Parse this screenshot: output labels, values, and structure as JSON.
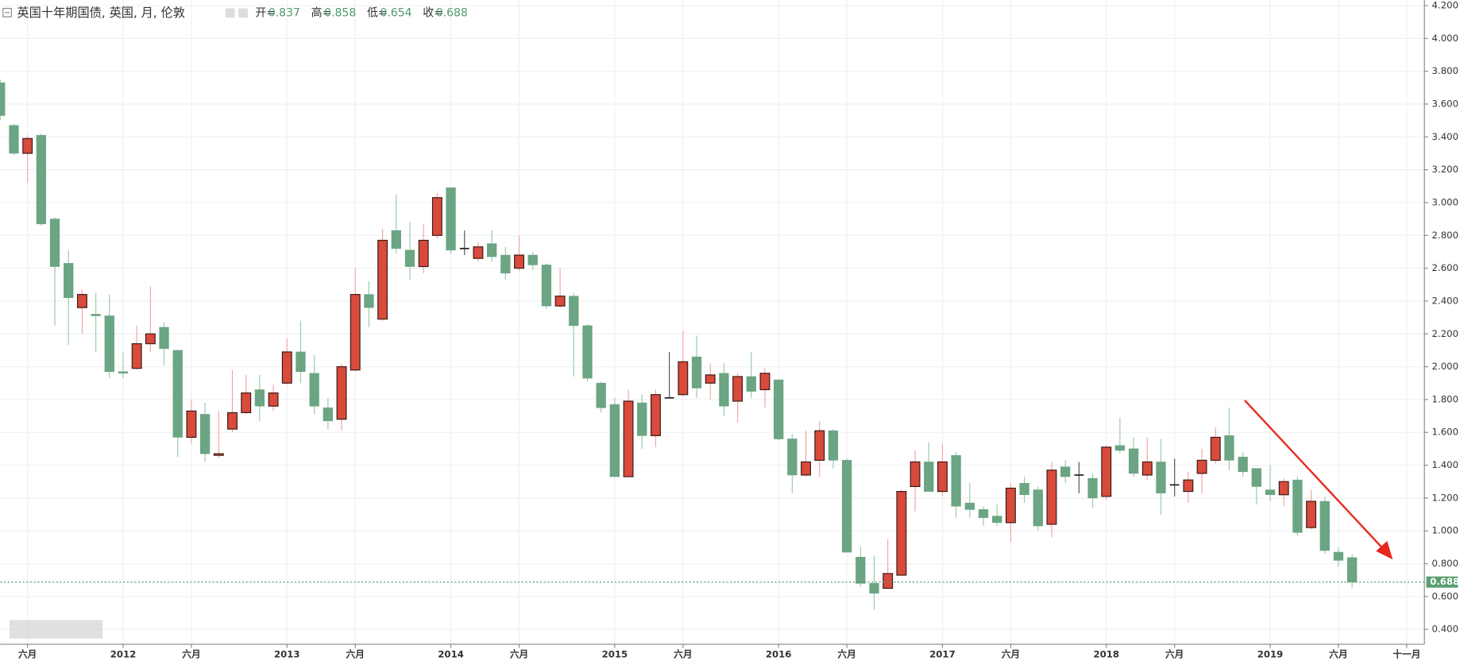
{
  "chart_data": {
    "type": "candlestick",
    "title": "英国十年期国债, 英国, 月, 伦敦",
    "ohlc_header": {
      "labels": [
        "开=",
        "高=",
        "低=",
        "收="
      ],
      "values": [
        0.837,
        0.858,
        0.654,
        0.688
      ]
    },
    "categories": [
      null,
      null,
      "六月",
      null,
      null,
      null,
      null,
      null,
      null,
      "2012",
      null,
      null,
      null,
      null,
      "六月",
      null,
      null,
      null,
      null,
      null,
      null,
      "2013",
      null,
      null,
      null,
      null,
      "六月",
      null,
      null,
      null,
      null,
      null,
      null,
      "2014",
      null,
      null,
      null,
      null,
      "六月",
      null,
      null,
      null,
      null,
      null,
      null,
      "2015",
      null,
      null,
      null,
      null,
      "六月",
      null,
      null,
      null,
      null,
      null,
      null,
      "2016",
      null,
      null,
      null,
      null,
      "六月",
      null,
      null,
      null,
      null,
      null,
      null,
      "2017",
      null,
      null,
      null,
      null,
      "六月",
      null,
      null,
      null,
      null,
      null,
      null,
      "2018",
      null,
      null,
      null,
      null,
      "六月",
      null,
      null,
      null,
      null,
      null,
      null,
      "2019",
      null,
      null,
      null,
      null,
      "六月",
      null,
      null,
      null,
      null,
      "十一月"
    ],
    "open": [
      3.73,
      3.47,
      3.3,
      3.41,
      2.9,
      2.63,
      2.36,
      2.32,
      2.31,
      1.97,
      1.99,
      2.14,
      2.24,
      2.1,
      1.57,
      1.71,
      1.46,
      1.62,
      1.72,
      1.86,
      1.76,
      1.9,
      2.09,
      1.96,
      1.75,
      1.68,
      1.98,
      2.44,
      2.29,
      2.83,
      2.71,
      2.61,
      2.8,
      3.09,
      2.72,
      2.66,
      2.75,
      2.68,
      2.6,
      2.68,
      2.62,
      2.37,
      2.43,
      2.25,
      1.9,
      1.77,
      1.33,
      1.78,
      1.58,
      1.81,
      1.83,
      2.06,
      1.9,
      1.96,
      1.79,
      1.94,
      1.86,
      1.92,
      1.56,
      1.34,
      1.43,
      1.61,
      1.43,
      0.84,
      0.68,
      0.65,
      0.73,
      1.27,
      1.42,
      1.24,
      1.46,
      1.17,
      1.13,
      1.09,
      1.05,
      1.29,
      1.25,
      1.04,
      1.39,
      1.34,
      1.32,
      1.21,
      1.52,
      1.5,
      1.34,
      1.42,
      1.28,
      1.24,
      1.35,
      1.43,
      1.58,
      1.45,
      1.38,
      1.25,
      1.22,
      1.31,
      1.02,
      1.18,
      0.87,
      0.837,
      null,
      null,
      null,
      null
    ],
    "high": [
      3.75,
      3.48,
      3.41,
      3.42,
      2.91,
      2.71,
      2.47,
      2.45,
      2.44,
      2.09,
      2.25,
      2.49,
      2.27,
      2.1,
      1.8,
      1.78,
      1.73,
      1.98,
      1.95,
      1.95,
      1.89,
      2.17,
      2.28,
      2.07,
      1.81,
      2.02,
      2.6,
      2.52,
      2.84,
      3.05,
      2.88,
      2.87,
      3.06,
      3.09,
      2.83,
      2.76,
      2.83,
      2.73,
      2.8,
      2.7,
      2.63,
      2.6,
      2.45,
      2.26,
      1.91,
      1.81,
      1.86,
      1.83,
      1.86,
      2.09,
      2.22,
      2.19,
      2.02,
      2.02,
      1.96,
      2.09,
      1.99,
      1.92,
      1.59,
      1.61,
      1.67,
      1.62,
      1.44,
      0.9,
      0.85,
      0.95,
      1.25,
      1.49,
      1.54,
      1.53,
      1.48,
      1.29,
      1.15,
      1.16,
      1.29,
      1.33,
      1.27,
      1.42,
      1.43,
      1.42,
      1.35,
      1.52,
      1.69,
      1.57,
      1.57,
      1.56,
      1.44,
      1.36,
      1.5,
      1.63,
      1.75,
      1.48,
      1.38,
      1.4,
      1.32,
      1.33,
      1.25,
      1.21,
      0.9,
      0.858,
      null,
      null,
      null,
      null
    ],
    "low": [
      3.5,
      3.29,
      3.12,
      2.86,
      2.25,
      2.13,
      2.2,
      2.09,
      1.93,
      1.93,
      1.98,
      2.09,
      2.01,
      1.45,
      1.53,
      1.42,
      1.44,
      1.6,
      1.71,
      1.67,
      1.73,
      1.89,
      1.9,
      1.71,
      1.62,
      1.61,
      1.97,
      2.24,
      2.28,
      2.69,
      2.53,
      2.57,
      2.78,
      2.69,
      2.68,
      2.64,
      2.64,
      2.53,
      2.58,
      2.59,
      2.35,
      2.36,
      1.94,
      1.91,
      1.72,
      1.33,
      1.33,
      1.5,
      1.51,
      1.81,
      1.82,
      1.81,
      1.8,
      1.7,
      1.66,
      1.81,
      1.75,
      1.55,
      1.23,
      1.33,
      1.33,
      1.38,
      0.87,
      0.66,
      0.52,
      0.65,
      0.73,
      1.12,
      1.24,
      1.21,
      1.08,
      1.08,
      1.03,
      1.03,
      0.93,
      1.17,
      1.0,
      0.96,
      1.29,
      1.23,
      1.14,
      1.19,
      1.47,
      1.33,
      1.31,
      1.1,
      1.21,
      1.17,
      1.23,
      1.41,
      1.37,
      1.33,
      1.16,
      1.18,
      1.15,
      0.97,
      1.01,
      0.86,
      0.78,
      0.654,
      null,
      null,
      null,
      null
    ],
    "close": [
      3.53,
      3.3,
      3.39,
      2.87,
      2.61,
      2.42,
      2.44,
      2.31,
      1.97,
      1.96,
      2.14,
      2.2,
      2.11,
      1.57,
      1.73,
      1.47,
      1.47,
      1.72,
      1.84,
      1.76,
      1.84,
      2.09,
      1.97,
      1.76,
      1.67,
      2.0,
      2.44,
      2.36,
      2.77,
      2.72,
      2.61,
      2.77,
      3.03,
      2.71,
      2.72,
      2.73,
      2.67,
      2.57,
      2.68,
      2.62,
      2.37,
      2.43,
      2.25,
      1.93,
      1.75,
      1.33,
      1.79,
      1.58,
      1.83,
      1.81,
      2.03,
      1.87,
      1.95,
      1.76,
      1.94,
      1.85,
      1.96,
      1.56,
      1.34,
      1.42,
      1.61,
      1.43,
      0.87,
      0.68,
      0.62,
      0.74,
      1.24,
      1.42,
      1.24,
      1.42,
      1.15,
      1.13,
      1.08,
      1.05,
      1.26,
      1.22,
      1.03,
      1.37,
      1.33,
      1.34,
      1.2,
      1.51,
      1.49,
      1.35,
      1.42,
      1.23,
      1.28,
      1.31,
      1.43,
      1.57,
      1.43,
      1.36,
      1.27,
      1.22,
      1.3,
      0.99,
      1.18,
      0.88,
      0.82,
      0.688,
      null,
      null,
      null,
      null
    ],
    "up_color": "#d84a3c",
    "down_color": "#6ba583",
    "last_price": 0.688,
    "ylim": [
      0.3,
      4.2
    ],
    "yticks": [
      {
        "value": 0.4,
        "label": "0.400"
      },
      {
        "value": 0.6,
        "label": "0.600"
      },
      {
        "value": 0.8,
        "label": "0.800"
      },
      {
        "value": 1.0,
        "label": "1.000"
      },
      {
        "value": 1.2,
        "label": "1.200"
      },
      {
        "value": 1.4,
        "label": "1.400"
      },
      {
        "value": 1.6,
        "label": "1.600"
      },
      {
        "value": 1.8,
        "label": "1.800"
      },
      {
        "value": 2.0,
        "label": "2.000"
      },
      {
        "value": 2.2,
        "label": "2.200"
      },
      {
        "value": 2.4,
        "label": "2.400"
      },
      {
        "value": 2.6,
        "label": "2.600"
      },
      {
        "value": 2.8,
        "label": "2.800"
      },
      {
        "value": 3.0,
        "label": "3.000"
      },
      {
        "value": 3.2,
        "label": "3.200"
      },
      {
        "value": 3.4,
        "label": "3.400"
      },
      {
        "value": 3.6,
        "label": "3.600"
      },
      {
        "value": 3.8,
        "label": "3.800"
      },
      {
        "value": 4.0,
        "label": "4.000"
      },
      {
        "value": 4.2,
        "label": "4.200"
      }
    ],
    "grid": true
  }
}
